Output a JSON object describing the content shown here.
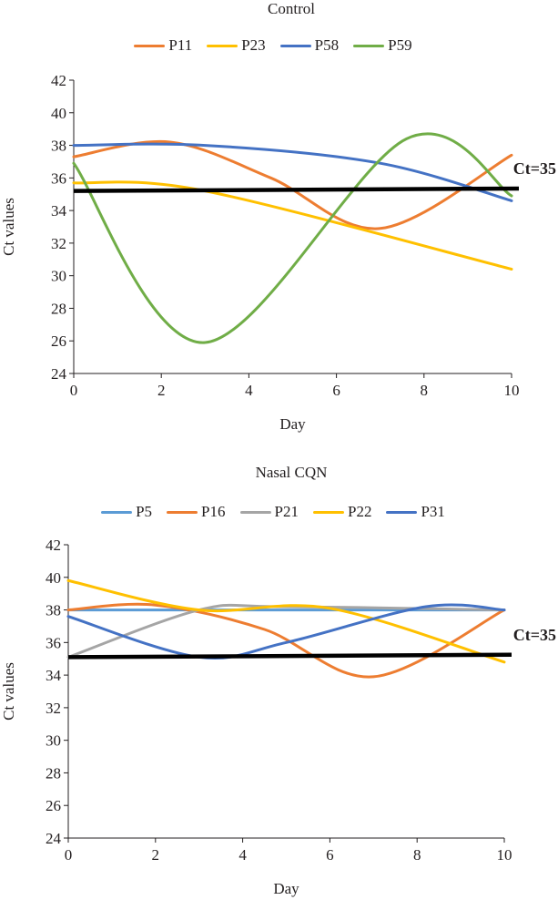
{
  "chart_data": [
    {
      "type": "line",
      "title": "Control",
      "xlabel": "Day",
      "ylabel": "Ct values",
      "xlim": [
        0,
        10
      ],
      "ylim": [
        24,
        42
      ],
      "xticks": [
        0,
        2,
        4,
        6,
        8,
        10
      ],
      "yticks": [
        24,
        26,
        28,
        30,
        32,
        34,
        36,
        38,
        40,
        42
      ],
      "legend_position": "top",
      "series": [
        {
          "name": "P11",
          "color": "#ed7d31",
          "x": [
            0,
            2.2,
            4.5,
            7,
            10
          ],
          "values": [
            37.3,
            38.2,
            36,
            32.9,
            37.4
          ]
        },
        {
          "name": "P23",
          "color": "#ffc000",
          "x": [
            0,
            3,
            10
          ],
          "values": [
            35.7,
            35.2,
            30.4
          ]
        },
        {
          "name": "P58",
          "color": "#4472c4",
          "x": [
            0,
            3,
            7,
            10
          ],
          "values": [
            38,
            38,
            36.9,
            34.6
          ]
        },
        {
          "name": "P59",
          "color": "#70ad47",
          "x": [
            0,
            3,
            7.6,
            10
          ],
          "values": [
            36.9,
            25.9,
            38.4,
            34.9
          ]
        }
      ],
      "threshold": {
        "label": "Ct=35",
        "x": [
          0,
          10
        ],
        "values": [
          35.2,
          35.35
        ],
        "color": "#000000"
      }
    },
    {
      "type": "line",
      "title": "Nasal CQN",
      "xlabel": "Day",
      "ylabel": "Ct values",
      "xlim": [
        0,
        10
      ],
      "ylim": [
        24,
        42
      ],
      "xticks": [
        0,
        2,
        4,
        6,
        8,
        10
      ],
      "yticks": [
        24,
        26,
        28,
        30,
        32,
        34,
        36,
        38,
        40,
        42
      ],
      "legend_position": "top",
      "series": [
        {
          "name": "P5",
          "color": "#5b9bd5",
          "x": [
            0,
            10
          ],
          "values": [
            38,
            38
          ]
        },
        {
          "name": "P16",
          "color": "#ed7d31",
          "x": [
            0,
            2,
            4.5,
            7,
            10
          ],
          "values": [
            38,
            38.3,
            36.8,
            33.9,
            38
          ]
        },
        {
          "name": "P21",
          "color": "#a5a5a5",
          "x": [
            0,
            3,
            4.8,
            10
          ],
          "values": [
            35.1,
            38,
            38.2,
            38
          ]
        },
        {
          "name": "P22",
          "color": "#ffc000",
          "x": [
            0,
            3,
            6,
            10
          ],
          "values": [
            39.8,
            38,
            38.1,
            34.8
          ]
        },
        {
          "name": "P31",
          "color": "#4472c4",
          "x": [
            0,
            3,
            5,
            8.2,
            10
          ],
          "values": [
            37.6,
            35.1,
            36,
            38.2,
            38
          ]
        }
      ],
      "threshold": {
        "label": "Ct=35",
        "x": [
          0,
          10
        ],
        "values": [
          35.1,
          35.25
        ],
        "color": "#000000"
      }
    }
  ]
}
